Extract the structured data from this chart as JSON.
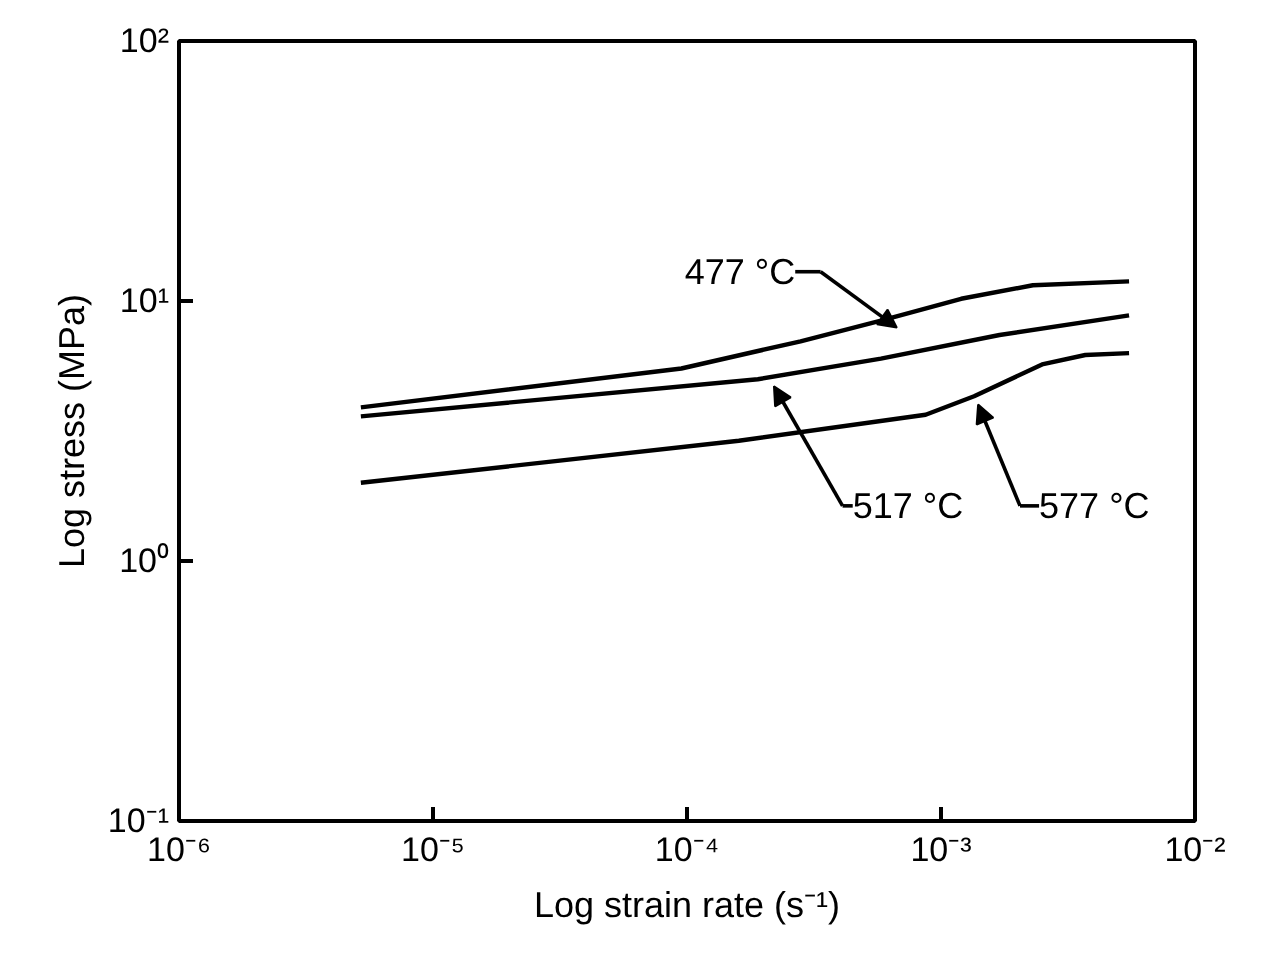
{
  "chart_data": {
    "type": "line",
    "xlabel": "Log strain rate (s⁻¹)",
    "ylabel": "Log stress (MPa)",
    "log": "xy",
    "xlim": [
      1e-06,
      0.01
    ],
    "ylim": [
      0.1,
      100
    ],
    "xticks": [
      {
        "value": 1e-06,
        "label": "10⁻⁶"
      },
      {
        "value": 1e-05,
        "label": "10⁻⁵"
      },
      {
        "value": 0.0001,
        "label": "10⁻⁴"
      },
      {
        "value": 0.001,
        "label": "10⁻³"
      },
      {
        "value": 0.01,
        "label": "10⁻²"
      }
    ],
    "yticks": [
      {
        "value": 0.1,
        "label": "10⁻¹"
      },
      {
        "value": 1,
        "label": "10⁰"
      },
      {
        "value": 10,
        "label": "10¹"
      },
      {
        "value": 100,
        "label": "10²"
      }
    ],
    "grid": false,
    "marker": "none",
    "line_style": "solid",
    "series": [
      {
        "color": "#000000",
        "x": [
          5.2e-06,
          9.5e-05,
          0.00028,
          0.00058,
          0.0012,
          0.0023,
          0.0055
        ],
        "values": [
          3.9,
          5.5,
          7.0,
          8.4,
          10.2,
          11.5,
          11.9
        ]
      },
      {
        "color": "#000000",
        "x": [
          5.2e-06,
          0.00019,
          0.00058,
          0.0017,
          0.0055
        ],
        "values": [
          3.6,
          5.0,
          6.0,
          7.4,
          8.8
        ]
      },
      {
        "color": "#000000",
        "x": [
          5.2e-06,
          0.00016,
          0.00087,
          0.00135,
          0.0025,
          0.0037,
          0.0055
        ],
        "values": [
          2.0,
          2.9,
          3.65,
          4.3,
          5.7,
          6.2,
          6.3
        ]
      }
    ],
    "annotations": [
      {
        "text": "477 °C",
        "x": 0.00067,
        "y": 7.9
      },
      {
        "text": "517 °C",
        "x": 0.00022,
        "y": 4.7
      },
      {
        "text": "577 °C",
        "x": 0.0014,
        "y": 4.0
      }
    ]
  }
}
